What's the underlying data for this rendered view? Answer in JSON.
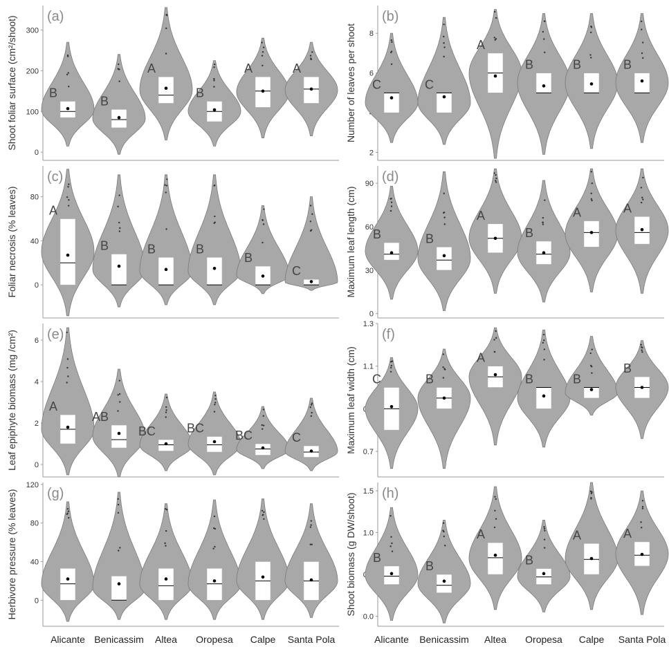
{
  "colors": {
    "violin": "#a8a8a8",
    "violin_stroke": "#7a7a7a",
    "box": "#ffffff",
    "axis": "#9a9a9a",
    "mean": "#000000"
  },
  "x_categories": [
    "Alicante",
    "Benicassim",
    "Altea",
    "Oropesa",
    "Calpe",
    "Santa Pola"
  ],
  "chart_data": [
    {
      "type": "violin",
      "panel": "(a)",
      "ylabel": "Shoot foliar surface (cm²/shoot)",
      "ylim": [
        -20,
        360
      ],
      "yticks": [
        "0",
        "100",
        "200",
        "300"
      ],
      "categories": [
        "Alicante",
        "Benicassim",
        "Altea",
        "Oropesa",
        "Calpe",
        "Santa Pola"
      ],
      "letters": [
        "B",
        "B",
        "A",
        "B",
        "A",
        "A"
      ],
      "violin_range": [
        [
          15,
          270
        ],
        [
          -5,
          240
        ],
        [
          30,
          355
        ],
        [
          15,
          225
        ],
        [
          35,
          280
        ],
        [
          40,
          270
        ]
      ],
      "box_q1": [
        85,
        60,
        120,
        75,
        110,
        120
      ],
      "median": [
        100,
        80,
        140,
        100,
        150,
        155
      ],
      "box_q3": [
        125,
        105,
        185,
        125,
        185,
        185
      ],
      "mean": [
        107,
        85,
        157,
        104,
        150,
        155
      ]
    },
    {
      "type": "violin",
      "panel": "(b)",
      "ylabel": "Number of leaves per shoot",
      "ylim": [
        1.6,
        9.4
      ],
      "yticks": [
        "2",
        "4",
        "6",
        "8"
      ],
      "categories": [
        "Alicante",
        "Benicassim",
        "Altea",
        "Oropesa",
        "Calpe",
        "Santa Pola"
      ],
      "letters": [
        "C",
        "C",
        "A",
        "B",
        "B",
        "B"
      ],
      "violin_range": [
        [
          2.5,
          8.0
        ],
        [
          2.4,
          8.8
        ],
        [
          1.7,
          9.2
        ],
        [
          1.9,
          9.0
        ],
        [
          2.2,
          9.0
        ],
        [
          2.5,
          9.0
        ]
      ],
      "box_q1": [
        4,
        4,
        5,
        5,
        5,
        5
      ],
      "median": [
        5,
        5,
        6,
        5,
        5,
        5
      ],
      "box_q3": [
        5,
        5,
        7,
        6,
        6,
        6
      ],
      "mean": [
        4.75,
        4.8,
        5.85,
        5.35,
        5.45,
        5.6
      ]
    },
    {
      "type": "violin",
      "panel": "(c)",
      "ylabel": "Foliar necrosis (% leaves)",
      "ylim": [
        -30,
        108
      ],
      "yticks": [
        "0",
        "40",
        "80"
      ],
      "categories": [
        "Alicante",
        "Benicassim",
        "Altea",
        "Oropesa",
        "Calpe",
        "Santa Pola"
      ],
      "letters": [
        "A",
        "B",
        "B",
        "B",
        "B",
        "C"
      ],
      "violin_range": [
        [
          -28,
          105
        ],
        [
          -20,
          100
        ],
        [
          -18,
          100
        ],
        [
          -18,
          100
        ],
        [
          -8,
          72
        ],
        [
          -5,
          80
        ]
      ],
      "box_q1": [
        0,
        0,
        0,
        0,
        0,
        0
      ],
      "median": [
        20,
        0,
        0,
        0,
        0,
        0
      ],
      "box_q3": [
        60,
        28,
        25,
        25,
        17,
        5
      ],
      "mean": [
        27,
        17,
        14,
        15,
        8,
        3
      ]
    },
    {
      "type": "violin",
      "panel": "(d)",
      "ylabel": "Maximum leaf length (cm)",
      "ylim": [
        -3,
        102
      ],
      "yticks": [
        "0",
        "30",
        "60",
        "90"
      ],
      "categories": [
        "Alicante",
        "Benicassim",
        "Altea",
        "Oropesa",
        "Calpe",
        "Santa Pola"
      ],
      "letters": [
        "B",
        "B",
        "A",
        "B",
        "A",
        "A"
      ],
      "violin_range": [
        [
          10,
          88
        ],
        [
          2,
          98
        ],
        [
          14,
          100
        ],
        [
          8,
          92
        ],
        [
          15,
          100
        ],
        [
          14,
          100
        ]
      ],
      "box_q1": [
        37,
        30,
        42,
        34,
        46,
        48
      ],
      "median": [
        41,
        37,
        52,
        41,
        56,
        56
      ],
      "box_q3": [
        49,
        46,
        62,
        50,
        64,
        67
      ],
      "mean": [
        42,
        40,
        52,
        42,
        56,
        58
      ]
    },
    {
      "type": "violin",
      "panel": "(e)",
      "ylabel": "Leaf epiphyte biomass (mg /cm²)",
      "ylim": [
        -0.6,
        6.8
      ],
      "yticks": [
        "0",
        "2",
        "4",
        "6"
      ],
      "categories": [
        "Alicante",
        "Benicassim",
        "Altea",
        "Oropesa",
        "Calpe",
        "Santa Pola"
      ],
      "letters": [
        "A",
        "AB",
        "BC",
        "BC",
        "BC",
        "C"
      ],
      "violin_range": [
        [
          -0.5,
          6.6
        ],
        [
          -0.6,
          4.6
        ],
        [
          -0.3,
          3.4
        ],
        [
          -0.5,
          3.5
        ],
        [
          -0.2,
          2.8
        ],
        [
          -0.3,
          3.2
        ]
      ],
      "box_q1": [
        1.0,
        0.8,
        0.65,
        0.6,
        0.45,
        0.35
      ],
      "median": [
        1.7,
        1.2,
        0.95,
        0.95,
        0.75,
        0.6
      ],
      "box_q3": [
        2.4,
        1.9,
        1.2,
        1.35,
        1.0,
        0.9
      ],
      "mean": [
        1.8,
        1.5,
        1.0,
        1.1,
        0.8,
        0.65
      ]
    },
    {
      "type": "violin",
      "panel": "(f)",
      "ylabel": "Maximum leaf width (cm)",
      "ylim": [
        0.58,
        1.3
      ],
      "yticks": [
        "0.7",
        "0.9",
        "1.1",
        "1.3"
      ],
      "categories": [
        "Alicante",
        "Benicassim",
        "Altea",
        "Oropesa",
        "Calpe",
        "Santa Pola"
      ],
      "letters": [
        "C",
        "B",
        "A",
        "B",
        "B",
        "B"
      ],
      "violin_range": [
        [
          0.62,
          1.14
        ],
        [
          0.62,
          1.18
        ],
        [
          0.73,
          1.28
        ],
        [
          0.72,
          1.27
        ],
        [
          0.87,
          1.24
        ],
        [
          0.76,
          1.22
        ]
      ],
      "box_q1": [
        0.8,
        0.9,
        1.0,
        0.9,
        0.95,
        0.95
      ],
      "median": [
        0.9,
        0.95,
        1.05,
        1.0,
        1.0,
        1.0
      ],
      "box_q3": [
        1.0,
        1.0,
        1.1,
        1.0,
        1.0,
        1.05
      ],
      "mean": [
        0.91,
        0.95,
        1.06,
        0.96,
        0.99,
        1.0
      ]
    },
    {
      "type": "violin",
      "panel": "(g)",
      "ylabel": "Herbivore pressure (% leaves)",
      "ylim": [
        -27,
        122
      ],
      "yticks": [
        "0",
        "40",
        "80",
        "120"
      ],
      "categories": [
        "Alicante",
        "Benicassim",
        "Altea",
        "Oropesa",
        "Calpe",
        "Santa Pola"
      ],
      "letters": [],
      "violin_range": [
        [
          -22,
          102
        ],
        [
          -20,
          112
        ],
        [
          -20,
          100
        ],
        [
          -20,
          104
        ],
        [
          -20,
          105
        ],
        [
          -18,
          100
        ]
      ],
      "box_q1": [
        0,
        0,
        0,
        0,
        0,
        0
      ],
      "median": [
        17,
        0,
        15,
        17,
        20,
        20
      ],
      "box_q3": [
        33,
        25,
        33,
        33,
        40,
        40
      ],
      "mean": [
        22,
        17,
        22,
        20,
        24,
        21
      ]
    },
    {
      "type": "violin",
      "panel": "(h)",
      "ylabel": "Shoot biomass (g DW/shoot)",
      "ylim": [
        -0.12,
        1.6
      ],
      "yticks": [
        "0.0",
        "0.5",
        "1.0",
        "1.5"
      ],
      "categories": [
        "Alicante",
        "Benicassim",
        "Altea",
        "Oropesa",
        "Calpe",
        "Santa Pola"
      ],
      "letters": [
        "B",
        "B",
        "A",
        "B",
        "A",
        "A"
      ],
      "violin_range": [
        [
          -0.05,
          1.3
        ],
        [
          -0.08,
          1.15
        ],
        [
          0.08,
          1.55
        ],
        [
          0.05,
          1.15
        ],
        [
          0.08,
          1.6
        ],
        [
          0.02,
          1.5
        ]
      ],
      "box_q1": [
        0.38,
        0.28,
        0.5,
        0.38,
        0.5,
        0.6
      ],
      "median": [
        0.48,
        0.37,
        0.7,
        0.47,
        0.68,
        0.73
      ],
      "box_q3": [
        0.6,
        0.5,
        0.88,
        0.57,
        0.87,
        0.89
      ],
      "mean": [
        0.51,
        0.42,
        0.73,
        0.51,
        0.69,
        0.74
      ]
    }
  ]
}
